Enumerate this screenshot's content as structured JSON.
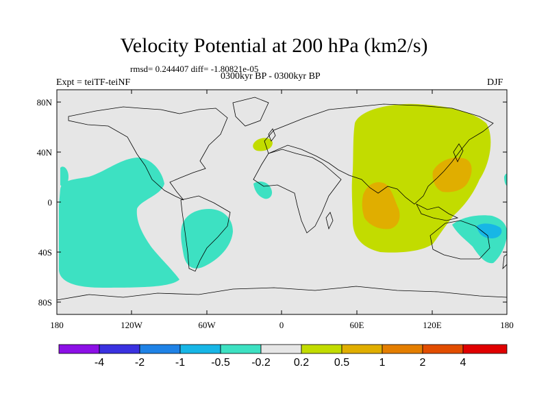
{
  "title": "Velocity Potential at 200 hPa (km2/s)",
  "stats": "rmsd= 0.244407 diff= -1.80821e-05",
  "left_label": "Expt = teiTF-teiNF",
  "center_label": "0300kyr BP - 0300kyr BP",
  "right_label": "DJF",
  "map": {
    "ocean_color": "#e6e6e6",
    "y_tick_labels": [
      "80N",
      "40N",
      "0",
      "40S",
      "80S"
    ],
    "x_tick_labels": [
      "180",
      "120W",
      "60W",
      "0",
      "60E",
      "120E",
      "180"
    ],
    "anomaly_regions": [
      {
        "name": "east-pacific-negative",
        "level": "-0.5",
        "color": "#3de1c2"
      },
      {
        "name": "south-america-negative",
        "level": "-0.5",
        "color": "#3de1c2"
      },
      {
        "name": "west-africa-negative",
        "level": "-0.5",
        "color": "#3de1c2"
      },
      {
        "name": "australia-negative",
        "level": "-0.5",
        "color": "#3de1c2"
      },
      {
        "name": "australia-strong-negative",
        "level": "-1",
        "color": "#17b6e6"
      },
      {
        "name": "asia-indian-positive",
        "level": "0.5",
        "color": "#c2dc00"
      },
      {
        "name": "europe-positive",
        "level": "0.5",
        "color": "#c2dc00"
      },
      {
        "name": "indian-ocean-strong-positive",
        "level": "1",
        "color": "#e0ae00"
      },
      {
        "name": "east-asia-strong-positive",
        "level": "1",
        "color": "#e0ae00"
      }
    ]
  },
  "colorbar": {
    "colors": [
      "#8c10e6",
      "#3a31e0",
      "#1f82e6",
      "#17b6e6",
      "#3de1c2",
      "#e6e6e6",
      "#c2dc00",
      "#e0ae00",
      "#e47e00",
      "#e24d00",
      "#e00000"
    ],
    "labels": [
      "-4",
      "-2",
      "-1",
      "-0.5",
      "-0.2",
      "0.2",
      "0.5",
      "1",
      "2",
      "4"
    ]
  }
}
